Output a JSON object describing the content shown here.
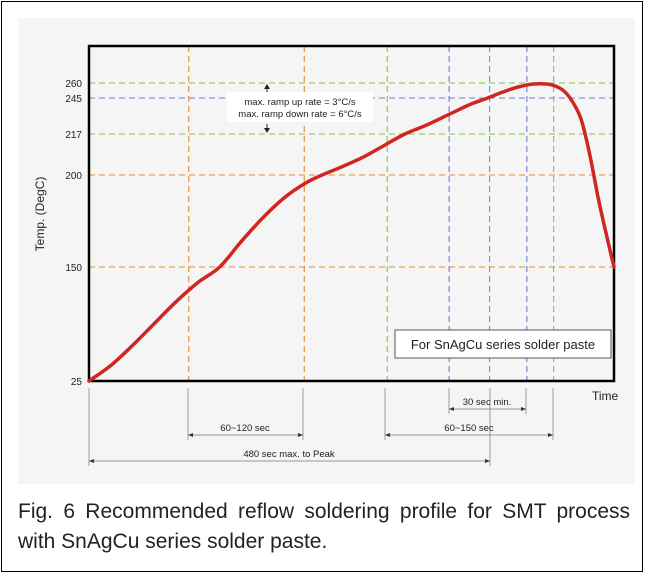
{
  "caption": "Fig. 6 Recommended reflow soldering profile for SMT process with SnAgCu series solder paste.",
  "chart_data": {
    "type": "line",
    "title": "",
    "xlabel": "Time",
    "ylabel": "Temp. (DegC)",
    "y_ticks": [
      25,
      150,
      200,
      217,
      245,
      260
    ],
    "ylim": [
      25,
      260
    ],
    "ramp_text": [
      "max. ramp up rate = 3°C/s",
      "max. ramp down rate = 6°C/s"
    ],
    "note": "For SnAgCu series solder paste",
    "annotations": [
      {
        "label": "60~120 sec",
        "from": 150,
        "to": 200
      },
      {
        "label": "60~150 sec",
        "from": 217,
        "to": 217
      },
      {
        "label": "30 sec min.",
        "from": 245,
        "to": 245
      },
      {
        "label": "480 sec max. to Peak",
        "from": 25,
        "to": 260
      }
    ],
    "series": [
      {
        "color": "#d0261f",
        "points": [
          [
            0,
            25
          ],
          [
            10,
            42
          ],
          [
            20,
            64
          ],
          [
            30,
            88
          ],
          [
            40,
            112
          ],
          [
            50,
            133
          ],
          [
            60,
            150
          ],
          [
            70,
            164
          ],
          [
            80,
            177
          ],
          [
            90,
            188
          ],
          [
            100,
            196
          ],
          [
            107,
            200
          ],
          [
            115,
            203
          ],
          [
            125,
            207
          ],
          [
            135,
            212
          ],
          [
            145,
            217
          ],
          [
            155,
            224
          ],
          [
            165,
            232
          ],
          [
            175,
            240
          ],
          [
            183,
            245
          ],
          [
            190,
            251
          ],
          [
            197,
            256
          ],
          [
            204,
            259
          ],
          [
            210,
            259
          ],
          [
            214,
            257
          ],
          [
            218,
            252
          ],
          [
            222,
            242
          ],
          [
            226,
            228
          ],
          [
            230,
            208
          ],
          [
            234,
            186
          ],
          [
            238,
            165
          ],
          [
            241,
            150
          ]
        ]
      }
    ],
    "colors": {
      "frame": "#000000",
      "orange_grid": "#e8892a",
      "green_grid": "#82c442",
      "blue_grid": "#6e7ecf",
      "cyan_grid": "#2cb6c4",
      "axis_guides": "#7a7a7a"
    }
  }
}
